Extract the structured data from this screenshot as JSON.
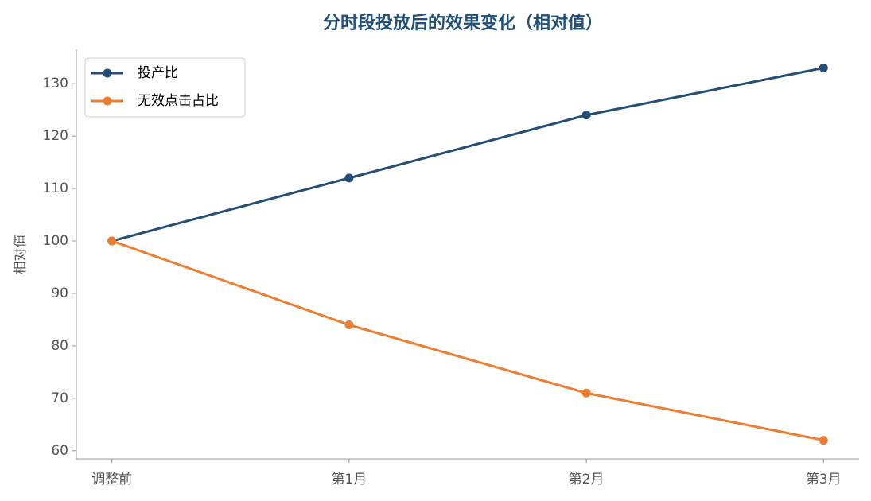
{
  "chart_data": {
    "type": "line",
    "title": "分时段投放后的效果变化（相对值）",
    "title_color": "#1f4e79",
    "y_label": "相对值",
    "categories": [
      "调整前",
      "第1月",
      "第2月",
      "第3月"
    ],
    "series": [
      {
        "name": "投产比",
        "color": "#234e77",
        "values": [
          100,
          112,
          124,
          133
        ]
      },
      {
        "name": "无效点击占比",
        "color": "#ed7d31",
        "values": [
          100,
          84,
          71,
          62
        ]
      }
    ],
    "ylim": [
      58.45,
      136.55
    ],
    "yticks": [
      60,
      70,
      80,
      90,
      100,
      110,
      120,
      130
    ],
    "grid": false,
    "legend": "upper-left"
  }
}
